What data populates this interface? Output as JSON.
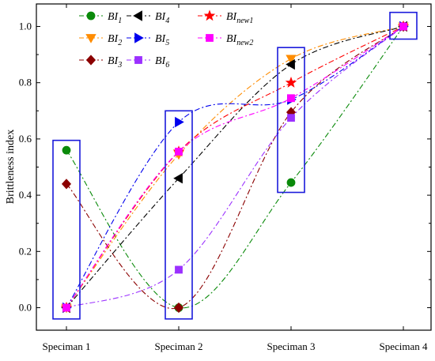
{
  "chart_data": {
    "type": "line",
    "title": "",
    "xlabel": "",
    "ylabel": "Brittleness index",
    "ylim": [
      -0.08,
      1.08
    ],
    "yticks": [
      0.0,
      0.2,
      0.4,
      0.6,
      0.8,
      1.0
    ],
    "categories": [
      "Speciman 1",
      "Speciman 2",
      "Speciman 3",
      "Speciman 4"
    ],
    "grid": false,
    "legend_position": "top-left, inside plot",
    "series": [
      {
        "name": "BI",
        "sub": "1",
        "color": "#0a8a0a",
        "marker": "circle",
        "dash": "dash-dot",
        "values": [
          0.56,
          0.0,
          0.445,
          1.0
        ]
      },
      {
        "name": "BI",
        "sub": "2",
        "color": "#ff8c00",
        "marker": "triangle-down",
        "dash": "dash-dot",
        "values": [
          0.0,
          0.545,
          0.885,
          1.0
        ]
      },
      {
        "name": "BI",
        "sub": "3",
        "color": "#8b0000",
        "marker": "diamond",
        "dash": "dash-dot",
        "values": [
          0.44,
          0.0,
          0.695,
          1.0
        ]
      },
      {
        "name": "BI",
        "sub": "4",
        "color": "#000000",
        "marker": "triangle-left",
        "dash": "dash-dot",
        "values": [
          0.0,
          0.46,
          0.865,
          1.0
        ]
      },
      {
        "name": "BI",
        "sub": "5",
        "color": "#0000ee",
        "marker": "triangle-right",
        "dash": "dash-dot",
        "values": [
          0.0,
          0.66,
          0.74,
          1.0
        ]
      },
      {
        "name": "BI",
        "sub": "6",
        "color": "#9b30ff",
        "marker": "square",
        "dash": "dash-dot",
        "values": [
          0.0,
          0.135,
          0.675,
          1.0
        ]
      },
      {
        "name": "BI",
        "sub": "new1",
        "color": "#ff0000",
        "marker": "star",
        "dash": "dash-dot",
        "values": [
          0.0,
          0.555,
          0.8,
          1.0
        ]
      },
      {
        "name": "BI",
        "sub": "new2",
        "color": "#ff00ff",
        "marker": "square",
        "dash": "dash-dot",
        "values": [
          0.0,
          0.555,
          0.745,
          1.0
        ]
      }
    ],
    "highlight_boxes": [
      {
        "category": "Speciman 1",
        "ymin": -0.04,
        "ymax": 0.595
      },
      {
        "category": "Speciman 2",
        "ymin": -0.04,
        "ymax": 0.7
      },
      {
        "category": "Speciman 3",
        "ymin": 0.41,
        "ymax": 0.925
      },
      {
        "category": "Speciman 4",
        "ymin": 0.955,
        "ymax": 1.05
      }
    ]
  }
}
